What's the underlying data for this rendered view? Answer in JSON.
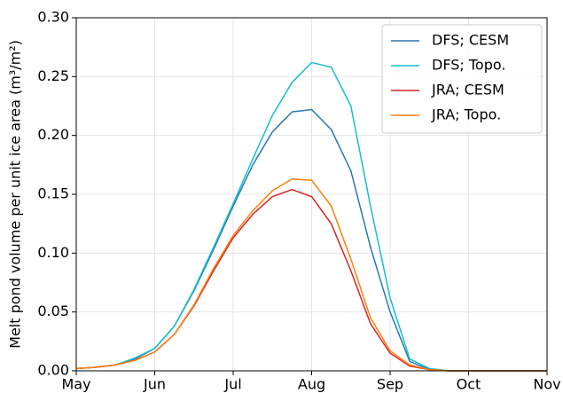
{
  "chart_data": {
    "type": "line",
    "y_label": "Melt pond volume per unit ice area (m³/m²)",
    "categories": [
      "May",
      null,
      null,
      null,
      "Jun",
      null,
      null,
      null,
      "Jul",
      null,
      null,
      null,
      "Aug",
      null,
      null,
      null,
      "Sep",
      null,
      null,
      null,
      "Oct",
      null,
      null,
      null,
      "Nov"
    ],
    "series": [
      {
        "name": "DFS; CESM",
        "color": "#2a77b4",
        "values": [
          0.002,
          0.003,
          0.005,
          0.01,
          0.019,
          0.038,
          0.068,
          0.103,
          0.14,
          0.175,
          0.203,
          0.22,
          0.222,
          0.205,
          0.17,
          0.105,
          0.05,
          0.008,
          0.001,
          0,
          0,
          0,
          0,
          0,
          0
        ]
      },
      {
        "name": "DFS; Topo.",
        "color": "#17becf",
        "values": [
          0.002,
          0.003,
          0.005,
          0.011,
          0.019,
          0.038,
          0.069,
          0.105,
          0.142,
          0.18,
          0.217,
          0.245,
          0.262,
          0.258,
          0.225,
          0.14,
          0.062,
          0.01,
          0.002,
          0,
          0,
          0,
          0,
          0,
          0
        ]
      },
      {
        "name": "JRA; CESM",
        "color": "#d62728",
        "values": [
          0.002,
          0.003,
          0.005,
          0.009,
          0.016,
          0.031,
          0.055,
          0.085,
          0.113,
          0.133,
          0.148,
          0.154,
          0.148,
          0.125,
          0.085,
          0.04,
          0.015,
          0.004,
          0.001,
          0,
          0,
          0,
          0,
          0,
          0
        ]
      },
      {
        "name": "JRA; Topo.",
        "color": "#ff7f0e",
        "values": [
          0.002,
          0.003,
          0.005,
          0.009,
          0.016,
          0.031,
          0.056,
          0.087,
          0.115,
          0.136,
          0.153,
          0.163,
          0.162,
          0.14,
          0.095,
          0.045,
          0.017,
          0.005,
          0.001,
          0,
          0,
          0,
          0,
          0,
          0
        ]
      }
    ],
    "ylim": [
      0,
      0.3
    ],
    "yticks": [
      {
        "value": 0,
        "label": "0.00"
      },
      {
        "value": 0.05,
        "label": "0.05"
      },
      {
        "value": 0.1,
        "label": "0.10"
      },
      {
        "value": 0.15,
        "label": "0.15"
      },
      {
        "value": 0.2,
        "label": "0.20"
      },
      {
        "value": 0.25,
        "label": "0.25"
      },
      {
        "value": 0.3,
        "label": "0.30"
      }
    ],
    "grid": true,
    "legend": "upper right"
  }
}
